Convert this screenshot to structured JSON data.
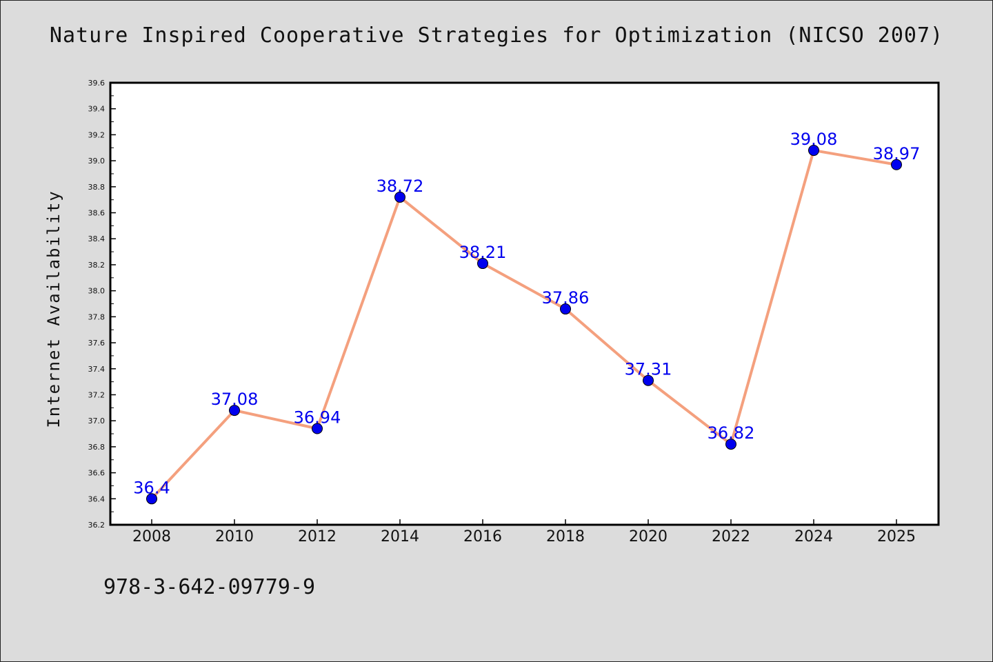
{
  "chart_data": {
    "type": "line",
    "title": "Nature Inspired Cooperative Strategies for Optimization (NICSO 2007)",
    "ylabel": "Internet Availability",
    "xlabel": "",
    "categories": [
      "2008",
      "2010",
      "2012",
      "2014",
      "2016",
      "2018",
      "2020",
      "2022",
      "2024",
      "2025"
    ],
    "series": [
      {
        "values": [
          36.4,
          37.08,
          36.94,
          38.72,
          38.21,
          37.86,
          37.31,
          36.82,
          39.08,
          38.97
        ],
        "labels": [
          "36.4",
          "37.08",
          "36.94",
          "38.72",
          "38.21",
          "37.86",
          "37.31",
          "36.82",
          "39.08",
          "38.97"
        ],
        "line_color": "#f4a07e",
        "marker_color": "#0000ee"
      }
    ],
    "ylim": [
      36.2,
      39.6
    ],
    "yticks": [
      "36.2",
      "36.4",
      "36.6",
      "36.8",
      "37.0",
      "37.2",
      "37.4",
      "37.6",
      "37.8",
      "38.0",
      "38.2",
      "38.4",
      "38.6",
      "38.8",
      "39.0",
      "39.2",
      "39.4",
      "39.6"
    ],
    "grid": false,
    "legend": "none"
  },
  "footer": {
    "isbn": "978-3-642-09779-9"
  }
}
